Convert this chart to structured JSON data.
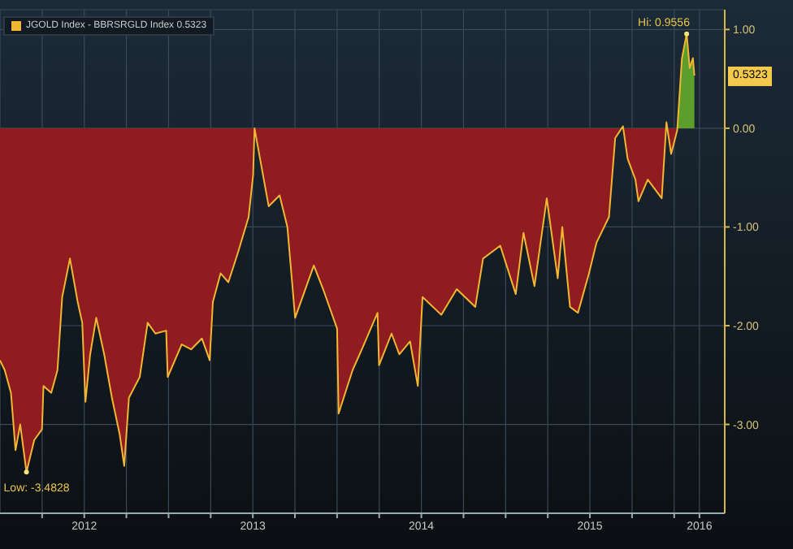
{
  "chart_data": {
    "type": "area",
    "x": [
      2012.0,
      2012.028,
      2012.065,
      2012.092,
      2012.12,
      2012.157,
      2012.203,
      2012.249,
      2012.258,
      2012.304,
      2012.341,
      2012.369,
      2012.415,
      2012.461,
      2012.488,
      2012.507,
      2012.535,
      2012.571,
      2012.618,
      2012.664,
      2012.71,
      2012.737,
      2012.765,
      2012.829,
      2012.876,
      2012.922,
      2012.986,
      2012.995,
      2013.078,
      2013.134,
      2013.198,
      2013.244,
      2013.263,
      2013.309,
      2013.355,
      2013.41,
      2013.475,
      2013.502,
      2013.51,
      2013.594,
      2013.659,
      2013.705,
      2013.751,
      2013.862,
      2013.917,
      2014.0,
      2014.009,
      2014.092,
      2014.147,
      2014.24,
      2014.249,
      2014.323,
      2014.369,
      2014.433,
      2014.479,
      2014.507,
      2014.618,
      2014.71,
      2014.82,
      2014.866,
      2014.968,
      2015.06,
      2015.106,
      2015.171,
      2015.244,
      2015.309,
      2015.336,
      2015.382,
      2015.429,
      2015.493,
      2015.539,
      2015.613,
      2015.65,
      2015.696,
      2015.724,
      2015.77,
      2015.788,
      2015.843,
      2015.926,
      2015.954,
      2015.982,
      2016.018,
      2016.046,
      2016.074,
      2016.092,
      2016.111,
      2016.12
    ],
    "series": [
      {
        "name": "JGOLD Index - BBRSRGLD Index",
        "color": "#f2b632",
        "values": [
          -2.35,
          -2.45,
          -2.68,
          -3.26,
          -3.0,
          -3.4828,
          -3.16,
          -3.05,
          -2.61,
          -2.68,
          -2.45,
          -1.71,
          -1.32,
          -1.76,
          -1.97,
          -2.77,
          -2.29,
          -1.92,
          -2.29,
          -2.73,
          -3.1,
          -3.42,
          -2.73,
          -2.52,
          -1.97,
          -2.08,
          -2.05,
          -2.52,
          -2.19,
          -2.24,
          -2.13,
          -2.35,
          -1.76,
          -1.47,
          -1.56,
          -1.27,
          -0.9,
          -0.47,
          0.0,
          -0.79,
          -0.68,
          -1.0,
          -1.92,
          -1.39,
          -1.63,
          -2.03,
          -2.89,
          -2.45,
          -2.24,
          -1.87,
          -2.4,
          -2.08,
          -2.29,
          -2.16,
          -2.61,
          -1.71,
          -1.89,
          -1.63,
          -1.81,
          -1.32,
          -1.19,
          -1.68,
          -1.06,
          -1.6,
          -0.71,
          -1.52,
          -1.0,
          -1.81,
          -1.87,
          -1.48,
          -1.16,
          -0.9,
          -0.1,
          0.02,
          -0.31,
          -0.52,
          -0.74,
          -0.52,
          -0.71,
          0.06,
          -0.26,
          -0.02,
          0.71,
          0.9556,
          0.61,
          0.71,
          0.5323
        ]
      }
    ],
    "colors": [
      "#8e1c20",
      "#5b9e2c"
    ],
    "xlim": [
      2012.0,
      2016.3
    ],
    "xticks": [
      {
        "value": 2012.25,
        "label": null
      },
      {
        "value": 2012.5,
        "label": "2012"
      },
      {
        "value": 2012.75,
        "label": null
      },
      {
        "value": 2013,
        "label": null
      },
      {
        "value": 2013.25,
        "label": null
      },
      {
        "value": 2013.5,
        "label": "2013"
      },
      {
        "value": 2013.75,
        "label": null
      },
      {
        "value": 2014,
        "label": null
      },
      {
        "value": 2014.25,
        "label": null
      },
      {
        "value": 2014.5,
        "label": "2014"
      },
      {
        "value": 2014.75,
        "label": null
      },
      {
        "value": 2015,
        "label": null
      },
      {
        "value": 2015.25,
        "label": null
      },
      {
        "value": 2015.5,
        "label": "2015"
      },
      {
        "value": 2015.75,
        "label": null
      },
      {
        "value": 2016,
        "label": null
      },
      {
        "value": 2016.15,
        "label": "2016"
      }
    ],
    "ylim": [
      -3.9,
      1.2
    ],
    "yticks": [
      {
        "value": 1,
        "label": "1.00"
      },
      {
        "value": 0,
        "label": "0.00"
      },
      {
        "value": -1,
        "label": "-1.00"
      },
      {
        "value": -2,
        "label": "-2.00"
      },
      {
        "value": -3,
        "label": "-3.00"
      }
    ],
    "grid": true,
    "legend": "top left",
    "annotations": [
      {
        "text": "Low: -3.4828",
        "x": 2012.157,
        "y": -3.4828
      },
      {
        "text": "Hi: 0.9556",
        "x": 2016.074,
        "y": 0.9556
      },
      "0.5323"
    ]
  }
}
